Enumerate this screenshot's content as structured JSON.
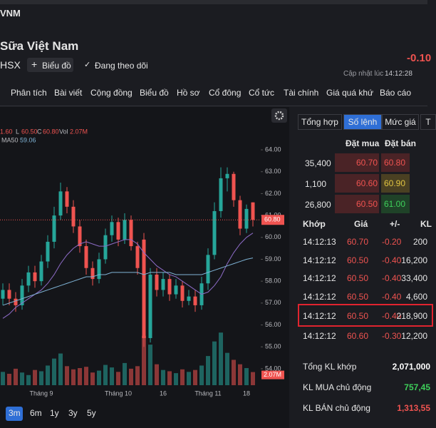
{
  "header": {
    "symbol": "VNM",
    "name": "Sữa Việt Nam",
    "exchange": "HSX",
    "chart_button": "Biểu đồ",
    "follow_button": "Đang theo dõi",
    "change": "-0.10",
    "updated_label": "Cập nhật lúc",
    "updated_time": "14:12:28"
  },
  "menu": [
    "Phân tích",
    "Bài viết",
    "Cộng đồng",
    "Biểu đồ",
    "Hồ sơ",
    "Cổ đông",
    "Cổ tức",
    "Tài chính",
    "Giá quá khứ",
    "Báo cáo"
  ],
  "chart_data": {
    "type": "candlestick",
    "legend": {
      "partial": "1.60",
      "low_label": "L",
      "low": "60.50",
      "close_label": "C",
      "close": "60.80",
      "vol_label": "Vol",
      "vol": "2.07M",
      "ma_label": "MA50",
      "ma_value": "59.06"
    },
    "categories": [
      null,
      null,
      null,
      null,
      null,
      null,
      "Tháng 9",
      null,
      null,
      null,
      null,
      null,
      null,
      null,
      null,
      null,
      null,
      null,
      "Tháng 10",
      null,
      null,
      null,
      null,
      null,
      null,
      "16",
      null,
      null,
      null,
      null,
      null,
      null,
      "Tháng 11",
      null,
      null,
      null,
      null,
      null,
      "18",
      null
    ],
    "open": [
      57.2,
      57.6,
      57.2,
      56.9,
      57.8,
      58.4,
      58.0,
      58.9,
      59.8,
      61.0,
      62.1,
      61.4,
      60.5,
      59.6,
      58.6,
      58.1,
      59.0,
      60.1,
      60.7,
      59.9,
      60.8,
      59.6,
      59.9,
      55.4,
      58.3,
      57.6,
      58.1,
      57.4,
      57.8,
      57.1,
      57.3,
      56.9,
      57.9,
      59.2,
      61.2,
      62.7,
      62.9,
      61.7,
      60.4,
      61.6
    ],
    "high": [
      57.9,
      57.9,
      57.5,
      58.1,
      58.7,
      58.7,
      59.2,
      60.1,
      61.4,
      62.5,
      62.3,
      61.7,
      60.8,
      59.9,
      58.9,
      59.3,
      60.4,
      61.0,
      60.9,
      61.1,
      61.0,
      59.8,
      60.2,
      58.6,
      58.6,
      58.4,
      58.3,
      58.1,
      58.0,
      57.6,
      57.6,
      58.2,
      59.5,
      61.6,
      63.2,
      63.2,
      63.0,
      61.9,
      61.5,
      61.6
    ],
    "low": [
      56.9,
      56.9,
      56.6,
      56.7,
      57.5,
      57.7,
      57.8,
      58.6,
      59.5,
      60.8,
      61.1,
      60.2,
      59.3,
      58.3,
      57.8,
      57.9,
      58.8,
      59.8,
      59.6,
      59.7,
      59.4,
      58.3,
      55.0,
      55.2,
      57.3,
      57.3,
      57.1,
      57.2,
      56.8,
      56.9,
      56.6,
      56.7,
      57.6,
      59.0,
      60.9,
      62.1,
      61.4,
      60.1,
      60.2,
      60.5
    ],
    "close": [
      57.6,
      57.2,
      56.9,
      57.8,
      58.4,
      58.0,
      58.9,
      59.8,
      61.0,
      62.1,
      61.4,
      60.5,
      59.6,
      58.6,
      58.1,
      59.0,
      60.1,
      60.7,
      59.9,
      60.8,
      59.6,
      58.6,
      55.4,
      58.3,
      57.6,
      58.1,
      57.4,
      57.8,
      57.1,
      57.3,
      56.9,
      57.9,
      59.2,
      61.2,
      62.7,
      62.9,
      61.7,
      60.4,
      61.3,
      60.8
    ],
    "volume": [
      2.1,
      1.8,
      2.6,
      2.0,
      1.6,
      2.4,
      2.2,
      3.1,
      4.2,
      5.0,
      3.0,
      2.5,
      2.7,
      2.9,
      2.0,
      2.3,
      3.2,
      2.8,
      2.1,
      3.5,
      2.6,
      3.0,
      7.8,
      6.4,
      3.3,
      2.4,
      2.2,
      1.9,
      2.5,
      2.1,
      2.4,
      3.1,
      4.6,
      6.9,
      8.3,
      5.1,
      4.0,
      3.3,
      2.7,
      2.07
    ],
    "volume_label": "2.07M",
    "volume_lim": [
      0,
      9
    ],
    "ma20": {
      "color": "#8e6cc8",
      "values": [
        56.3,
        56.5,
        56.8,
        57.0,
        57.2,
        57.4,
        57.6,
        57.9,
        58.3,
        58.8,
        59.2,
        59.5,
        59.7,
        59.8,
        59.7,
        59.6,
        59.6,
        59.7,
        59.8,
        59.9,
        59.9,
        59.7,
        59.3,
        59.0,
        58.7,
        58.5,
        58.3,
        58.2,
        58.0,
        57.8,
        57.6,
        57.4,
        57.5,
        57.8,
        58.2,
        58.8,
        59.3,
        59.7,
        60.0,
        60.2
      ]
    },
    "ma50": {
      "color": "#7fb3d5",
      "values": [
        56.9,
        57.0,
        57.1,
        57.2,
        57.3,
        57.4,
        57.5,
        57.6,
        57.7,
        57.8,
        57.9,
        58.0,
        58.1,
        58.2,
        58.2,
        58.3,
        58.3,
        58.4,
        58.4,
        58.4,
        58.4,
        58.4,
        58.3,
        58.4,
        58.4,
        58.4,
        58.4,
        58.3,
        58.3,
        58.3,
        58.3,
        58.3,
        58.4,
        58.5,
        58.6,
        58.7,
        58.8,
        58.9,
        59.0,
        59.06
      ]
    },
    "last_price": {
      "value": 60.8,
      "label": "60.80"
    },
    "up_color": "#26a69a",
    "down_color": "#ef5350",
    "ylim": [
      53.9,
      65.63
    ],
    "yticks": [
      {
        "value": 54,
        "label": "54.00"
      },
      {
        "value": 55,
        "label": "55.00"
      },
      {
        "value": 56,
        "label": "56.00"
      },
      {
        "value": 57,
        "label": "57.00"
      },
      {
        "value": 58,
        "label": "58.00"
      },
      {
        "value": 59,
        "label": "59.00"
      },
      {
        "value": 60,
        "label": "60.00"
      },
      {
        "value": 61,
        "label": "61.00"
      },
      {
        "value": 62,
        "label": "62.00"
      },
      {
        "value": 63,
        "label": "63.00"
      },
      {
        "value": 64,
        "label": "64.00"
      }
    ],
    "periods": [
      "3m",
      "6m",
      "1y",
      "3y",
      "5y"
    ],
    "active_period": 0
  },
  "panel": {
    "tabs": [
      "Tổng hợp",
      "Số lệnh",
      "Mức giá",
      "T"
    ],
    "active_tab": 1,
    "book_header": [
      "Đặt mua",
      "Đặt bán"
    ],
    "book": [
      [
        "35,400",
        "60.70",
        "60.80"
      ],
      [
        "1,100",
        "60.60",
        "60.90"
      ],
      [
        "26,800",
        "60.50",
        "61.00"
      ]
    ],
    "trade_header": [
      "Khớp",
      "Giá",
      "+/-",
      "KL"
    ],
    "trades": [
      [
        "14:12:13",
        "60.70",
        "-0.20",
        "200"
      ],
      [
        "14:12:12",
        "60.50",
        "-0.40",
        "16,200"
      ],
      [
        "14:12:12",
        "60.50",
        "-0.40",
        "33,400"
      ],
      [
        "14:12:12",
        "60.50",
        "-0.40",
        "4,600"
      ],
      [
        "14:12:12",
        "60.50",
        "-0.40",
        "218,900"
      ],
      [
        "14:12:12",
        "60.60",
        "-0.30",
        "12,200"
      ]
    ],
    "highlighted_trade": 4,
    "summary": [
      [
        "Tổng KL khớp",
        "2,071,000"
      ],
      [
        "KL MUA chủ động",
        "757,45"
      ],
      [
        "KL BÁN chủ động",
        "1,313,55"
      ]
    ]
  }
}
